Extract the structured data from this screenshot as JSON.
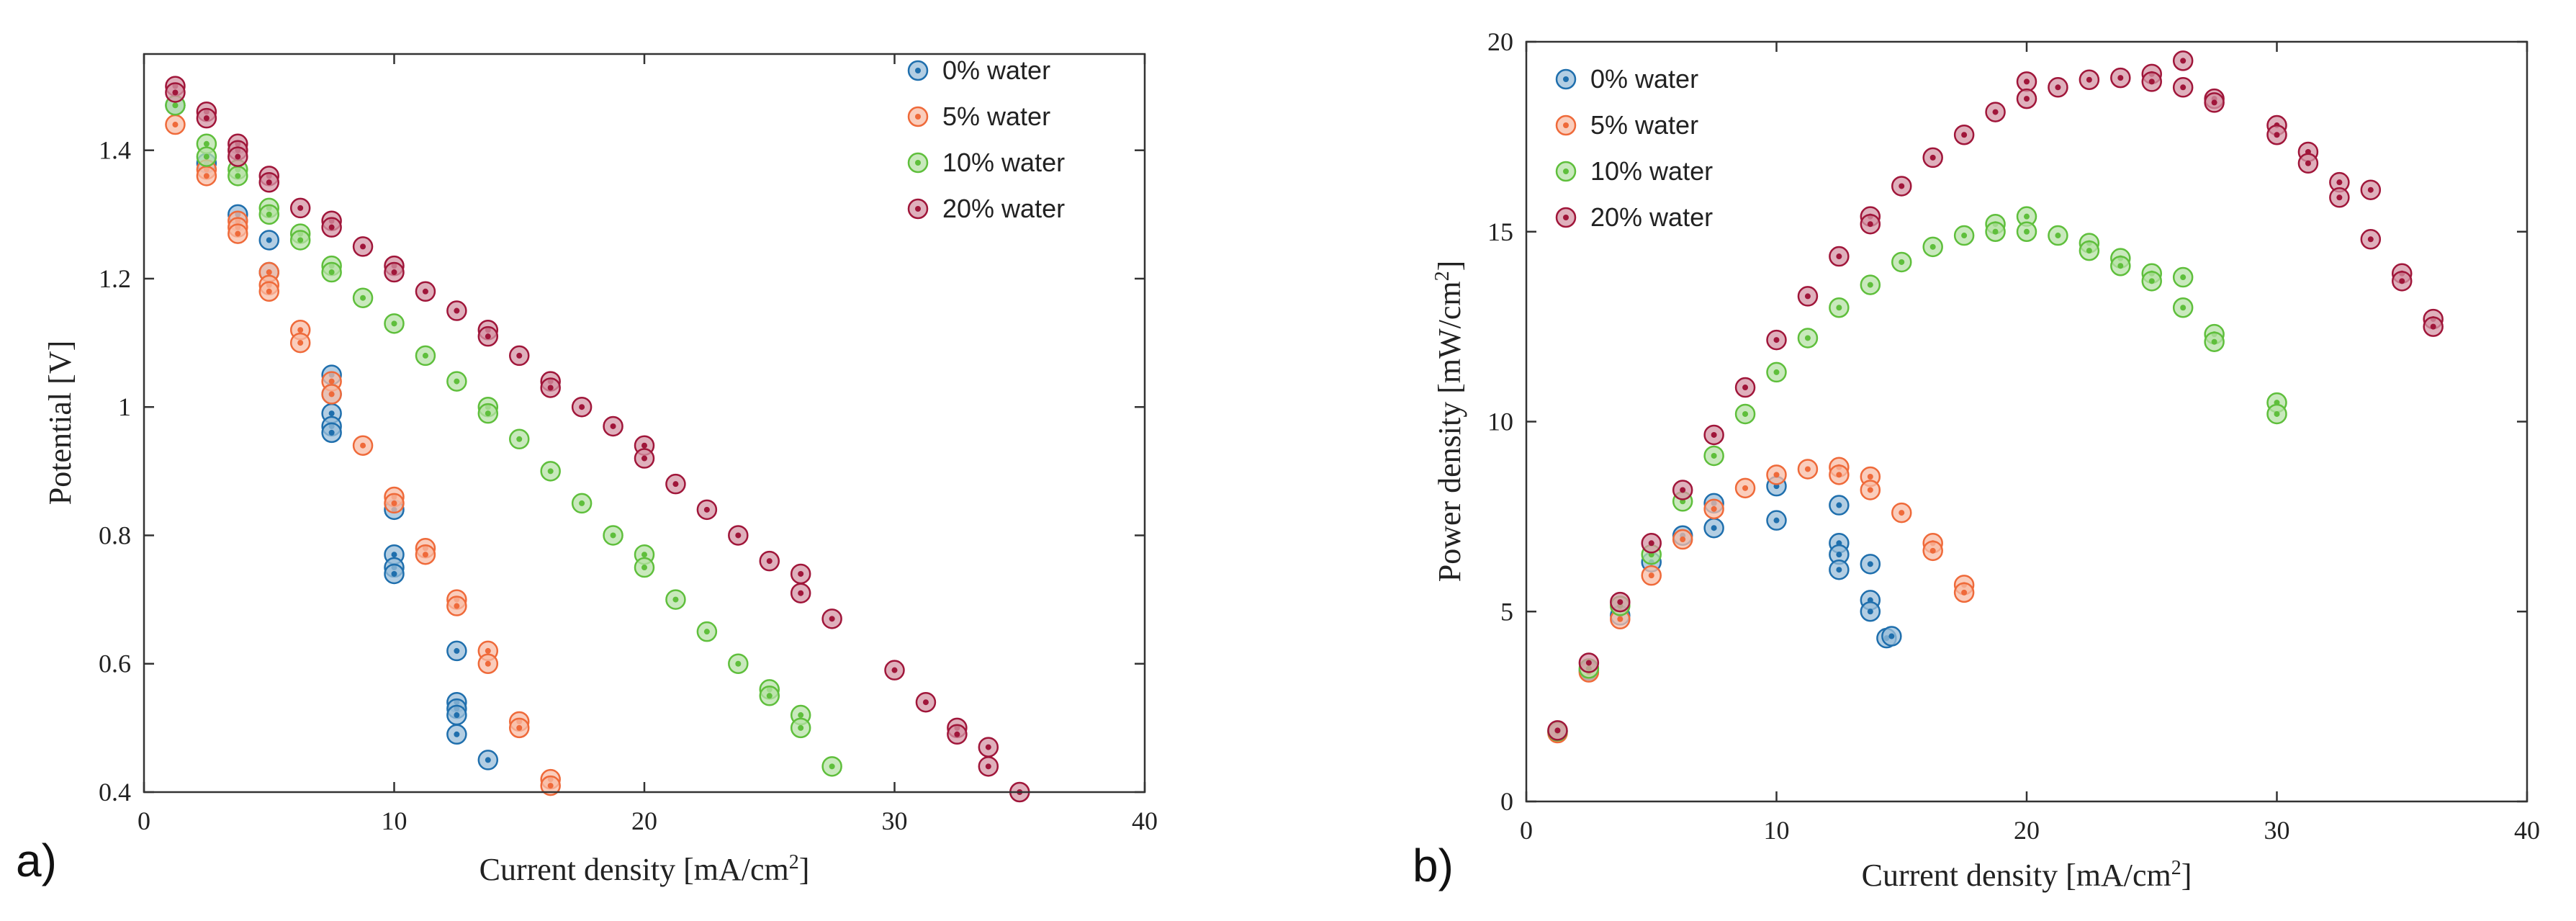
{
  "colors": {
    "0% water": "#1f6fad",
    "5% water": "#ef6a3a",
    "10% water": "#5fbf3c",
    "20% water": "#a0163a"
  },
  "chart_data": [
    {
      "type": "scatter",
      "panel_label": "a)",
      "xlabel": "Current density [mA/cm",
      "xlabel_sup": "2",
      "xlabel_suffix": "]",
      "ylabel": "Potential [V]",
      "xlim": [
        0,
        40
      ],
      "ylim": [
        0.4,
        1.55
      ],
      "xticks": [
        0,
        10,
        20,
        30,
        40
      ],
      "xtick_labels": [
        "0",
        "10",
        "20",
        "30",
        "40"
      ],
      "yticks": [
        0.4,
        0.6,
        0.8,
        1.0,
        1.2,
        1.4
      ],
      "ytick_labels": [
        "0.4",
        "0.6",
        "0.8",
        "1",
        "1.2",
        "1.4"
      ],
      "legend_position": "top-right",
      "series": [
        {
          "name": "0% water",
          "x": [
            1.25,
            2.5,
            3.75,
            5,
            5,
            7.5,
            7.5,
            7.5,
            7.5,
            7.5,
            10,
            10,
            10,
            10,
            12.5,
            12.5,
            12.5,
            12.5,
            12.5,
            13.75
          ],
          "y": [
            1.47,
            1.38,
            1.3,
            1.26,
            1.21,
            1.05,
            1.02,
            0.99,
            0.97,
            0.96,
            0.84,
            0.77,
            0.75,
            0.74,
            0.62,
            0.54,
            0.53,
            0.52,
            0.49,
            0.45
          ]
        },
        {
          "name": "5% water",
          "x": [
            1.25,
            2.5,
            2.5,
            3.75,
            3.75,
            3.75,
            5,
            5,
            5,
            6.25,
            6.25,
            7.5,
            7.5,
            8.75,
            10,
            10,
            11.25,
            11.25,
            12.5,
            12.5,
            13.75,
            13.75,
            15,
            15,
            16.25,
            16.25
          ],
          "y": [
            1.44,
            1.37,
            1.36,
            1.29,
            1.28,
            1.27,
            1.21,
            1.19,
            1.18,
            1.12,
            1.1,
            1.04,
            1.02,
            0.94,
            0.86,
            0.85,
            0.78,
            0.77,
            0.7,
            0.69,
            0.62,
            0.6,
            0.51,
            0.5,
            0.42,
            0.41
          ]
        },
        {
          "name": "10% water",
          "x": [
            1.25,
            2.5,
            2.5,
            3.75,
            3.75,
            5,
            5,
            6.25,
            6.25,
            7.5,
            7.5,
            8.75,
            10,
            11.25,
            12.5,
            13.75,
            13.75,
            15,
            16.25,
            17.5,
            18.75,
            20,
            20,
            21.25,
            22.5,
            23.75,
            25,
            25,
            26.25,
            26.25,
            27.5
          ],
          "y": [
            1.47,
            1.41,
            1.39,
            1.37,
            1.36,
            1.31,
            1.3,
            1.27,
            1.26,
            1.22,
            1.21,
            1.17,
            1.13,
            1.08,
            1.04,
            1.0,
            0.99,
            0.95,
            0.9,
            0.85,
            0.8,
            0.77,
            0.75,
            0.7,
            0.65,
            0.6,
            0.56,
            0.55,
            0.52,
            0.5,
            0.44
          ]
        },
        {
          "name": "20% water",
          "x": [
            1.25,
            1.25,
            2.5,
            2.5,
            3.75,
            3.75,
            3.75,
            5,
            5,
            6.25,
            7.5,
            7.5,
            8.75,
            10,
            10,
            11.25,
            12.5,
            13.75,
            13.75,
            15,
            16.25,
            16.25,
            17.5,
            18.75,
            20,
            20,
            21.25,
            22.5,
            23.75,
            25,
            26.25,
            26.25,
            27.5,
            30,
            31.25,
            32.5,
            32.5,
            33.75,
            33.75,
            35
          ],
          "y": [
            1.5,
            1.49,
            1.46,
            1.45,
            1.41,
            1.4,
            1.39,
            1.36,
            1.35,
            1.31,
            1.29,
            1.28,
            1.25,
            1.22,
            1.21,
            1.18,
            1.15,
            1.12,
            1.11,
            1.08,
            1.04,
            1.03,
            1.0,
            0.97,
            0.94,
            0.92,
            0.88,
            0.84,
            0.8,
            0.76,
            0.74,
            0.71,
            0.67,
            0.59,
            0.54,
            0.5,
            0.49,
            0.47,
            0.44,
            0.4
          ]
        }
      ]
    },
    {
      "type": "scatter",
      "panel_label": "b)",
      "xlabel": "Current density [mA/cm",
      "xlabel_sup": "2",
      "xlabel_suffix": "]",
      "ylabel": "Power density [mW/cm",
      "ylabel_sup": "2",
      "ylabel_suffix": "]",
      "xlim": [
        0,
        40
      ],
      "ylim": [
        0,
        20
      ],
      "xticks": [
        0,
        10,
        20,
        30,
        40
      ],
      "xtick_labels": [
        "0",
        "10",
        "20",
        "30",
        "40"
      ],
      "yticks": [
        0,
        5,
        10,
        15,
        20
      ],
      "ytick_labels": [
        "0",
        "5",
        "10",
        "15",
        "20"
      ],
      "legend_position": "top-left",
      "series": [
        {
          "name": "0% water",
          "x": [
            1.25,
            2.5,
            3.75,
            5,
            6.25,
            7.5,
            7.5,
            10,
            10,
            12.5,
            12.5,
            12.5,
            12.5,
            13.75,
            13.75,
            13.75,
            14.4,
            14.6
          ],
          "y": [
            1.85,
            3.45,
            4.9,
            6.3,
            7.0,
            7.85,
            7.2,
            8.3,
            7.4,
            7.8,
            6.8,
            6.5,
            6.1,
            6.25,
            5.3,
            5.0,
            4.3,
            4.35
          ]
        },
        {
          "name": "5% water",
          "x": [
            1.25,
            2.5,
            3.75,
            5,
            6.25,
            7.5,
            8.75,
            10,
            11.25,
            12.5,
            12.5,
            13.75,
            13.75,
            15,
            16.25,
            16.25,
            17.5,
            17.5
          ],
          "y": [
            1.8,
            3.4,
            4.8,
            5.95,
            6.9,
            7.7,
            8.25,
            8.6,
            8.75,
            8.8,
            8.6,
            8.55,
            8.2,
            7.6,
            6.8,
            6.6,
            5.7,
            5.5
          ]
        },
        {
          "name": "10% water",
          "x": [
            1.25,
            2.5,
            3.75,
            5,
            6.25,
            7.5,
            8.75,
            10,
            11.25,
            12.5,
            13.75,
            15,
            16.25,
            17.5,
            18.75,
            18.75,
            20,
            20,
            21.25,
            22.5,
            22.5,
            23.75,
            23.75,
            25,
            25,
            26.25,
            26.25,
            27.5,
            27.5,
            30,
            30
          ],
          "y": [
            1.85,
            3.5,
            5.15,
            6.5,
            7.9,
            9.1,
            10.2,
            11.3,
            12.2,
            13.0,
            13.6,
            14.2,
            14.6,
            14.9,
            15.2,
            15.0,
            15.4,
            15.0,
            14.9,
            14.7,
            14.5,
            14.3,
            14.1,
            13.9,
            13.7,
            13.8,
            13.0,
            12.3,
            12.1,
            10.5,
            10.2
          ]
        },
        {
          "name": "20% water",
          "x": [
            1.25,
            2.5,
            3.75,
            5,
            6.25,
            7.5,
            8.75,
            10,
            11.25,
            12.5,
            13.75,
            13.75,
            15,
            16.25,
            17.5,
            18.75,
            20,
            20,
            21.25,
            22.5,
            23.75,
            25,
            25,
            26.25,
            26.25,
            27.5,
            27.5,
            30,
            30,
            31.25,
            31.25,
            32.5,
            32.5,
            33.75,
            33.75,
            35,
            35,
            36.25,
            36.25
          ],
          "y": [
            1.87,
            3.65,
            5.25,
            6.8,
            8.2,
            9.65,
            10.9,
            12.15,
            13.3,
            14.35,
            15.4,
            15.2,
            16.2,
            16.95,
            17.55,
            18.15,
            18.95,
            18.5,
            18.8,
            19.0,
            19.05,
            19.15,
            18.95,
            19.5,
            18.8,
            18.5,
            18.4,
            17.8,
            17.55,
            17.1,
            16.8,
            16.3,
            15.9,
            16.1,
            14.8,
            13.9,
            13.7,
            12.7,
            12.5
          ]
        }
      ]
    }
  ]
}
